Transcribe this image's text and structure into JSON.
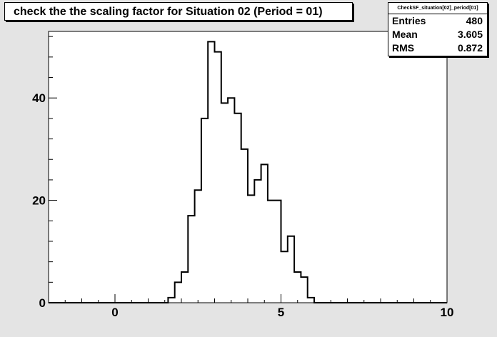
{
  "title": "check the the scaling factor for Situation 02 (Period = 01)",
  "stats": {
    "name": "CheckSF_situation[02]_period[01]",
    "rows": [
      {
        "label": "Entries",
        "value": "480"
      },
      {
        "label": "Mean",
        "value": "3.605"
      },
      {
        "label": "RMS",
        "value": "0.872"
      }
    ]
  },
  "colors": {
    "frame_bg": "#e4e4e4",
    "plot_bg": "#ffffff",
    "line": "#000000"
  },
  "chart_data": {
    "type": "bar",
    "histogram": true,
    "title": "check the the scaling factor for Situation 02 (Period = 01)",
    "xlabel": "",
    "ylabel": "",
    "xlim": [
      -2,
      10
    ],
    "ylim": [
      0,
      53
    ],
    "bin_width": 0.2,
    "x_ticks": [
      0,
      5,
      10
    ],
    "y_ticks": [
      0,
      20,
      40
    ],
    "x_tick_labels": [
      "0",
      "5",
      "10"
    ],
    "y_tick_labels": [
      "0",
      "20",
      "40"
    ],
    "bin_edges_start": 1.6,
    "counts": [
      1,
      4,
      6,
      17,
      22,
      36,
      51,
      49,
      39,
      40,
      37,
      30,
      21,
      24,
      27,
      20,
      20,
      10,
      13,
      6,
      5,
      1
    ],
    "grid": false,
    "legend": "none"
  }
}
